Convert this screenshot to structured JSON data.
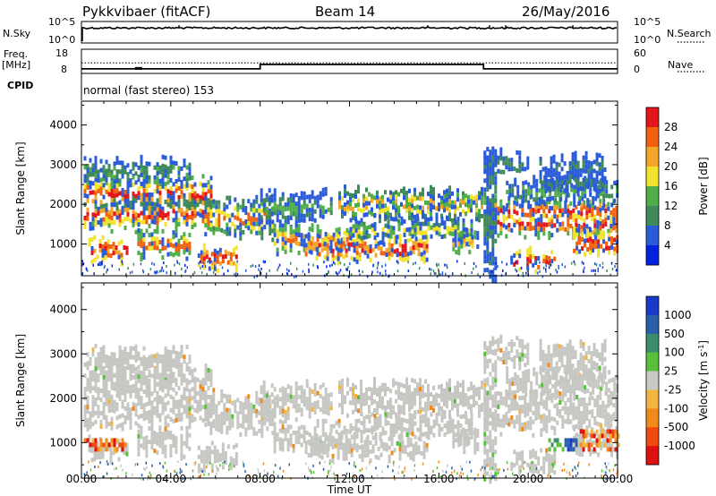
{
  "header": {
    "station": "Pykkvibaer (fitACF)",
    "beam": "Beam 14",
    "date": "26/May/2016"
  },
  "labels": {
    "nsky": "N.Sky",
    "nsearch": "N.Search",
    "freq_line1": "Freq.",
    "freq_line2": "[MHz]",
    "nave": "Nave",
    "cpid": "CPID",
    "cpid_value": "normal (fast stereo) 153"
  },
  "colors": {
    "power_scale": [
      "#0022dd",
      "#2a5bd8",
      "#3f8a5a",
      "#4fae4a",
      "#f3e32e",
      "#f4a629",
      "#f0620f",
      "#e3161b"
    ],
    "velocity_scale": [
      "#1a39c8",
      "#2a5ea8",
      "#3c8e6a",
      "#58c03a",
      "#c8c8c4",
      "#f2b640",
      "#f08a1a",
      "#f04a10",
      "#dd1111"
    ],
    "velocity_fill": "#c6c6c2"
  },
  "chart_data": [
    {
      "type": "line",
      "name": "noise",
      "ylabel_left": "N.Sky",
      "ylabel_right": "N.Search",
      "left_ticks": [
        "10^5",
        "10^0"
      ],
      "right_ticks": [
        "10^5",
        "10^0"
      ],
      "x": [
        0,
        24
      ],
      "level_fraction": 0.7
    },
    {
      "type": "line",
      "name": "frequency-nave",
      "ylabel_left": "Freq. [MHz]",
      "ylabel_right": "Nave",
      "left_ticks": [
        "18",
        "8"
      ],
      "right_ticks": [
        "60",
        "0"
      ],
      "freq_ylim": [
        8,
        18
      ],
      "nave_ylim": [
        0,
        60
      ],
      "freq_steps": [
        {
          "x0": 0,
          "x1": 8,
          "y": 9.9
        },
        {
          "x0": 8,
          "x1": 18,
          "y": 11.7
        },
        {
          "x0": 18,
          "x1": 24,
          "y": 9.9
        }
      ],
      "nave_level": 26
    },
    {
      "type": "heatmap",
      "name": "power",
      "ylabel": "Slant Range [km]",
      "ylim": [
        200,
        4600
      ],
      "yticks": [
        1000,
        2000,
        3000,
        4000
      ],
      "colorbar_label": "Power [dB]",
      "colorbar_ticks": [
        "28",
        "24",
        "20",
        "16",
        "12",
        "8",
        "4"
      ]
    },
    {
      "type": "heatmap",
      "name": "velocity",
      "ylabel": "Slant Range [km]",
      "ylim": [
        200,
        4600
      ],
      "yticks": [
        1000,
        2000,
        3000,
        4000
      ],
      "colorbar_label": "Velocity [m s",
      "colorbar_label_sup": "-1",
      "colorbar_label_end": "]",
      "colorbar_ticks": [
        "1000",
        "500",
        "100",
        "25",
        "-25",
        "-100",
        "-500",
        "-1000"
      ],
      "xlabel": "Time UT",
      "xticks": [
        "00:00",
        "04:00",
        "08:00",
        "12:00",
        "16:00",
        "20:00",
        "00:00"
      ],
      "xlim": [
        0,
        24
      ]
    }
  ]
}
